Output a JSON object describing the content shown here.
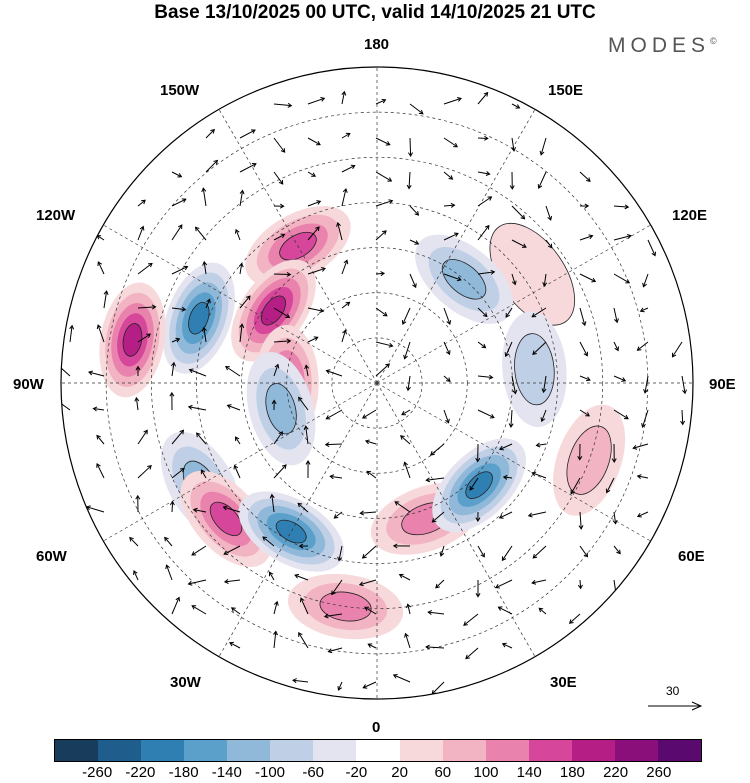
{
  "title": "Base 13/10/2025 00 UTC, valid 14/10/2025 21 UTC",
  "brand": {
    "name": "MODES",
    "mark": "©"
  },
  "longitude_labels": {
    "lon_180": "180",
    "lon_150w": "150W",
    "lon_150e": "150E",
    "lon_120w": "120W",
    "lon_120e": "120E",
    "lon_90w": "90W",
    "lon_90e": "90E",
    "lon_60w": "60W",
    "lon_60e": "60E",
    "lon_30w": "30W",
    "lon_30e": "30E",
    "lon_0": "0"
  },
  "vector_scale_label": "30",
  "colorbar": {
    "ticks": [
      "-260",
      "-220",
      "-180",
      "-140",
      "-100",
      "-60",
      "-20",
      "20",
      "60",
      "100",
      "140",
      "180",
      "220",
      "260"
    ],
    "colors": [
      "#173c5c",
      "#1f5d8c",
      "#2f7fb3",
      "#5b9fcb",
      "#8fb8d9",
      "#bfcfe6",
      "#e4e4f0",
      "#ffffff",
      "#f7d9dc",
      "#f2b4c2",
      "#e983ad",
      "#d6469a",
      "#b51f85",
      "#8a0f7a",
      "#5a0a6e"
    ]
  },
  "field_blobs": [
    {
      "lon": 210,
      "lat": 55,
      "value": 180
    },
    {
      "lon": 250,
      "lat": 48,
      "value": -220
    },
    {
      "lon": 235,
      "lat": 62,
      "value": 200
    },
    {
      "lon": 260,
      "lat": 35,
      "value": 220
    },
    {
      "lon": 300,
      "lat": 45,
      "value": -140
    },
    {
      "lon": 312,
      "lat": 45,
      "value": 180
    },
    {
      "lon": 330,
      "lat": 52,
      "value": -200
    },
    {
      "lon": 352,
      "lat": 40,
      "value": 120
    },
    {
      "lon": 20,
      "lat": 58,
      "value": 150
    },
    {
      "lon": 45,
      "lat": 58,
      "value": -200
    },
    {
      "lon": 70,
      "lat": 40,
      "value": 80
    },
    {
      "lon": 125,
      "lat": 48,
      "value": 60
    },
    {
      "lon": 140,
      "lat": 60,
      "value": -140
    },
    {
      "lon": 95,
      "lat": 55,
      "value": -80
    },
    {
      "lon": 270,
      "lat": 70,
      "value": 160
    },
    {
      "lon": 285,
      "lat": 68,
      "value": -120
    }
  ]
}
